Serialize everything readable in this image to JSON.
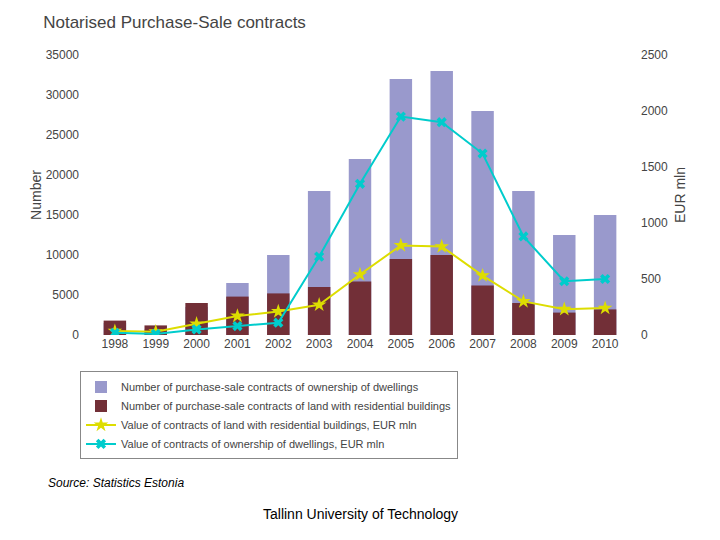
{
  "chart_data": {
    "type": "bar",
    "title": "Notarised Purchase-Sale contracts",
    "categories": [
      "1998",
      "1999",
      "2000",
      "2001",
      "2002",
      "2003",
      "2004",
      "2005",
      "2006",
      "2007",
      "2008",
      "2009",
      "2010"
    ],
    "ylabel": "Number",
    "y2label": "EUR mln",
    "ylim": [
      0,
      35000
    ],
    "yticks": [
      0,
      5000,
      10000,
      15000,
      20000,
      25000,
      30000,
      35000
    ],
    "y2lim": [
      0,
      2500
    ],
    "y2ticks": [
      0,
      500,
      1000,
      1500,
      2000,
      2500
    ],
    "grid": false,
    "legend": "bottom",
    "annotations": [
      "Source: Statistics Estonia",
      "Tallinn University of Technology"
    ],
    "series": [
      {
        "name": "Number of purchase-sale contracts of ownership of dwellings",
        "type": "bar",
        "color": "#9999CC",
        "values": [
          1500,
          700,
          3500,
          6500,
          10000,
          18000,
          22000,
          32000,
          33000,
          28000,
          18000,
          12500,
          15000
        ]
      },
      {
        "name": "Number of purchase-sale contracts of land with residential buildings",
        "type": "bar",
        "color": "#722F37",
        "values": [
          1800,
          1200,
          4000,
          4800,
          5200,
          6000,
          6700,
          9500,
          10000,
          6200,
          4000,
          2800,
          3200
        ]
      },
      {
        "name": "Value of contracts of land with residential buildings, EUR mln",
        "type": "line",
        "axis": "y2",
        "color": "#DDDD00",
        "marker": "star",
        "values": [
          35,
          30,
          100,
          170,
          210,
          270,
          540,
          800,
          790,
          530,
          300,
          230,
          240
        ]
      },
      {
        "name": "Value of contracts of ownership of dwellings, EUR mln",
        "type": "line",
        "axis": "y2",
        "color": "#00CCCC",
        "marker": "x",
        "values": [
          20,
          10,
          50,
          80,
          110,
          700,
          1350,
          1950,
          1900,
          1620,
          880,
          480,
          500
        ]
      }
    ]
  }
}
